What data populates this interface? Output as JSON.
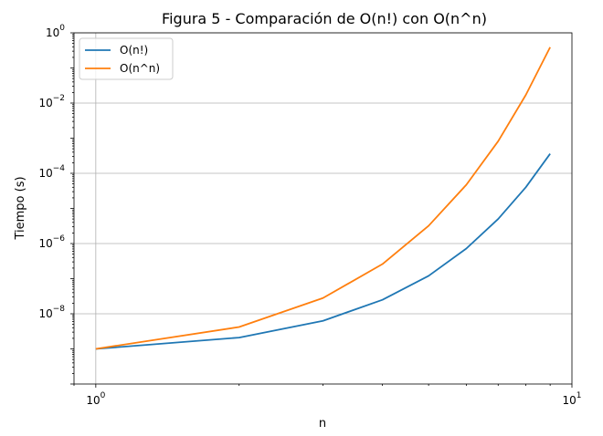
{
  "chart_data": {
    "type": "line",
    "title": "Figura 5 - Comparación de O(n!) con O(n^n)",
    "xlabel": "n",
    "ylabel": "Tiempo (s)",
    "xscale": "log",
    "yscale": "log",
    "xlim": [
      0.9,
      10
    ],
    "ylim": [
      1e-10,
      1
    ],
    "grid": "y-major, x at 10^0",
    "legend_position": "top-left",
    "x_ticks": [
      {
        "value": 1,
        "base": "10",
        "exp": "0"
      },
      {
        "value": 10,
        "base": "10",
        "exp": "1"
      }
    ],
    "y_ticks": [
      {
        "value": 1e-08,
        "base": "10",
        "exp": "−8"
      },
      {
        "value": 1e-06,
        "base": "10",
        "exp": "−6"
      },
      {
        "value": 0.0001,
        "base": "10",
        "exp": "−4"
      },
      {
        "value": 0.01,
        "base": "10",
        "exp": "−2"
      },
      {
        "value": 1,
        "base": "10",
        "exp": "0"
      }
    ],
    "x": [
      1,
      2,
      3,
      4,
      5,
      6,
      7,
      8,
      9
    ],
    "series": [
      {
        "name": "O(n!)",
        "color": "#1f77b4",
        "values": [
          1e-09,
          2.1e-09,
          6.3e-09,
          2.5e-08,
          1.2e-07,
          7.2e-07,
          5e-06,
          4e-05,
          0.00036
        ]
      },
      {
        "name": "O(n^n)",
        "color": "#ff7f0e",
        "values": [
          1e-09,
          4.2e-09,
          2.8e-08,
          2.6e-07,
          3.2e-06,
          4.7e-05,
          0.00082,
          0.017,
          0.39
        ]
      }
    ]
  }
}
